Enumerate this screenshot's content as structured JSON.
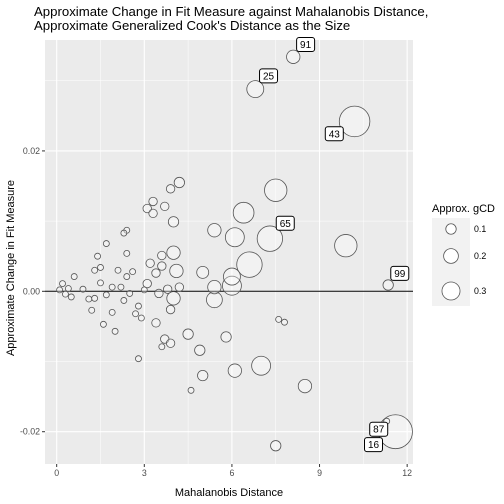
{
  "chart_data": {
    "type": "scatter",
    "title": [
      "Approximate Change in Fit Measure against Mahalanobis Distance,",
      "Approximate Generalized Cook's Distance as the Size"
    ],
    "xlabel": "Mahalanobis Distance",
    "ylabel": "Approximate Change in Fit Measure",
    "xlim": [
      -0.4,
      12.2
    ],
    "ylim": [
      -0.0246,
      0.0358
    ],
    "x_ticks": [
      0,
      3,
      6,
      9,
      12
    ],
    "x_tick_labels": [
      "0",
      "3",
      "6",
      "9",
      "12"
    ],
    "y_ticks": [
      -0.02,
      0.0,
      0.02
    ],
    "y_tick_labels": [
      "-0.02",
      "0.00",
      "0.02"
    ],
    "grid": true,
    "reference_line_y": 0,
    "size_legend": {
      "title": "Approx. gCD",
      "placement": "right",
      "values": [
        0.1,
        0.2,
        0.3
      ],
      "labels": [
        "0.1",
        "0.2",
        "0.3"
      ]
    },
    "colors": {
      "panel": "#ebebeb",
      "grid": "#ffffff",
      "point_stroke": "#555555",
      "point_fill": "#ffffff"
    },
    "points": [
      {
        "x": 8.1,
        "y": 0.0334,
        "gcd": 0.05,
        "label": "91"
      },
      {
        "x": 6.8,
        "y": 0.0288,
        "gcd": 0.08,
        "label": "25"
      },
      {
        "x": 10.2,
        "y": 0.0242,
        "gcd": 0.26,
        "label": "43"
      },
      {
        "x": 11.6,
        "y": -0.02,
        "gcd": 0.32,
        "label": "16"
      },
      {
        "x": 11.3,
        "y": -0.0185,
        "gcd": 0.01,
        "label": "87"
      },
      {
        "x": 11.35,
        "y": 0.0009,
        "gcd": 0.03,
        "label": "99"
      },
      {
        "x": 7.3,
        "y": 0.0075,
        "gcd": 0.18,
        "label": "65"
      },
      {
        "x": 7.5,
        "y": 0.0144,
        "gcd": 0.14,
        "label": ""
      },
      {
        "x": 9.9,
        "y": 0.0065,
        "gcd": 0.14,
        "label": ""
      },
      {
        "x": 6.4,
        "y": 0.0112,
        "gcd": 0.12,
        "label": ""
      },
      {
        "x": 6.6,
        "y": 0.0038,
        "gcd": 0.18,
        "label": ""
      },
      {
        "x": 6.1,
        "y": 0.0077,
        "gcd": 0.1,
        "label": ""
      },
      {
        "x": 5.4,
        "y": 0.0087,
        "gcd": 0.05,
        "label": ""
      },
      {
        "x": 6.0,
        "y": 0.0021,
        "gcd": 0.08,
        "label": ""
      },
      {
        "x": 6.0,
        "y": 0.0008,
        "gcd": 0.1,
        "label": ""
      },
      {
        "x": 5.4,
        "y": -0.0012,
        "gcd": 0.07,
        "label": ""
      },
      {
        "x": 5.4,
        "y": 0.0006,
        "gcd": 0.05,
        "label": ""
      },
      {
        "x": 5.0,
        "y": 0.0027,
        "gcd": 0.04,
        "label": ""
      },
      {
        "x": 5.8,
        "y": -0.0065,
        "gcd": 0.03,
        "label": ""
      },
      {
        "x": 6.1,
        "y": -0.0113,
        "gcd": 0.05,
        "label": ""
      },
      {
        "x": 7.0,
        "y": -0.0106,
        "gcd": 0.1,
        "label": ""
      },
      {
        "x": 7.6,
        "y": -0.004,
        "gcd": 0.01,
        "label": ""
      },
      {
        "x": 7.8,
        "y": -0.0044,
        "gcd": 0.01,
        "label": ""
      },
      {
        "x": 8.5,
        "y": -0.0135,
        "gcd": 0.05,
        "label": ""
      },
      {
        "x": 7.5,
        "y": -0.022,
        "gcd": 0.03,
        "label": ""
      },
      {
        "x": 4.2,
        "y": 0.0155,
        "gcd": 0.03,
        "label": ""
      },
      {
        "x": 3.9,
        "y": 0.0146,
        "gcd": 0.02,
        "label": ""
      },
      {
        "x": 3.7,
        "y": 0.0121,
        "gcd": 0.02,
        "label": ""
      },
      {
        "x": 3.3,
        "y": 0.0128,
        "gcd": 0.02,
        "label": ""
      },
      {
        "x": 3.1,
        "y": 0.0118,
        "gcd": 0.02,
        "label": ""
      },
      {
        "x": 3.3,
        "y": 0.0111,
        "gcd": 0.02,
        "label": ""
      },
      {
        "x": 4.0,
        "y": 0.0099,
        "gcd": 0.03,
        "label": ""
      },
      {
        "x": 4.0,
        "y": 0.0055,
        "gcd": 0.05,
        "label": ""
      },
      {
        "x": 4.1,
        "y": 0.0029,
        "gcd": 0.05,
        "label": ""
      },
      {
        "x": 3.6,
        "y": 0.0036,
        "gcd": 0.02,
        "label": ""
      },
      {
        "x": 3.6,
        "y": 0.0051,
        "gcd": 0.02,
        "label": ""
      },
      {
        "x": 3.2,
        "y": 0.004,
        "gcd": 0.02,
        "label": ""
      },
      {
        "x": 3.4,
        "y": 0.0026,
        "gcd": 0.02,
        "label": ""
      },
      {
        "x": 3.8,
        "y": 0.0003,
        "gcd": 0.02,
        "label": ""
      },
      {
        "x": 4.2,
        "y": 0.0006,
        "gcd": 0.02,
        "label": ""
      },
      {
        "x": 4.0,
        "y": -0.001,
        "gcd": 0.05,
        "label": ""
      },
      {
        "x": 3.1,
        "y": 0.0011,
        "gcd": 0.02,
        "label": ""
      },
      {
        "x": 3.5,
        "y": -0.0003,
        "gcd": 0.02,
        "label": ""
      },
      {
        "x": 3.9,
        "y": -0.0026,
        "gcd": 0.02,
        "label": ""
      },
      {
        "x": 3.7,
        "y": -0.0068,
        "gcd": 0.02,
        "label": ""
      },
      {
        "x": 3.9,
        "y": -0.0074,
        "gcd": 0.02,
        "label": ""
      },
      {
        "x": 3.6,
        "y": -0.0079,
        "gcd": 0.01,
        "label": ""
      },
      {
        "x": 3.4,
        "y": -0.0045,
        "gcd": 0.02,
        "label": ""
      },
      {
        "x": 4.5,
        "y": -0.0061,
        "gcd": 0.03,
        "label": ""
      },
      {
        "x": 4.6,
        "y": -0.0141,
        "gcd": 0.01,
        "label": ""
      },
      {
        "x": 5.0,
        "y": -0.012,
        "gcd": 0.03,
        "label": ""
      },
      {
        "x": 4.9,
        "y": -0.0084,
        "gcd": 0.03,
        "label": ""
      },
      {
        "x": 2.4,
        "y": 0.0087,
        "gcd": 0.01,
        "label": ""
      },
      {
        "x": 2.3,
        "y": 0.0083,
        "gcd": 0.01,
        "label": ""
      },
      {
        "x": 2.4,
        "y": 0.0054,
        "gcd": 0.01,
        "label": ""
      },
      {
        "x": 2.1,
        "y": 0.003,
        "gcd": 0.01,
        "label": ""
      },
      {
        "x": 2.4,
        "y": 0.0021,
        "gcd": 0.01,
        "label": ""
      },
      {
        "x": 2.6,
        "y": 0.0028,
        "gcd": 0.01,
        "label": ""
      },
      {
        "x": 2.2,
        "y": 0.0006,
        "gcd": 0.01,
        "label": ""
      },
      {
        "x": 2.5,
        "y": -0.0003,
        "gcd": 0.01,
        "label": ""
      },
      {
        "x": 2.3,
        "y": -0.0013,
        "gcd": 0.01,
        "label": ""
      },
      {
        "x": 2.7,
        "y": -0.0032,
        "gcd": 0.01,
        "label": ""
      },
      {
        "x": 2.8,
        "y": -0.0021,
        "gcd": 0.01,
        "label": ""
      },
      {
        "x": 2.8,
        "y": -0.0096,
        "gcd": 0.01,
        "label": ""
      },
      {
        "x": 2.9,
        "y": -0.0038,
        "gcd": 0.01,
        "label": ""
      },
      {
        "x": 3.0,
        "y": 0.0002,
        "gcd": 0.01,
        "label": ""
      },
      {
        "x": 1.7,
        "y": 0.0068,
        "gcd": 0.01,
        "label": ""
      },
      {
        "x": 1.4,
        "y": 0.005,
        "gcd": 0.01,
        "label": ""
      },
      {
        "x": 1.5,
        "y": 0.0034,
        "gcd": 0.01,
        "label": ""
      },
      {
        "x": 1.3,
        "y": 0.003,
        "gcd": 0.01,
        "label": ""
      },
      {
        "x": 1.5,
        "y": 0.0012,
        "gcd": 0.01,
        "label": ""
      },
      {
        "x": 1.9,
        "y": 0.0006,
        "gcd": 0.01,
        "label": ""
      },
      {
        "x": 1.7,
        "y": -0.0005,
        "gcd": 0.01,
        "label": ""
      },
      {
        "x": 1.3,
        "y": -0.001,
        "gcd": 0.01,
        "label": ""
      },
      {
        "x": 1.2,
        "y": -0.0027,
        "gcd": 0.01,
        "label": ""
      },
      {
        "x": 1.6,
        "y": -0.0047,
        "gcd": 0.01,
        "label": ""
      },
      {
        "x": 1.9,
        "y": -0.003,
        "gcd": 0.01,
        "label": ""
      },
      {
        "x": 2.0,
        "y": -0.0057,
        "gcd": 0.01,
        "label": ""
      },
      {
        "x": 0.9,
        "y": 0.0003,
        "gcd": 0.01,
        "label": ""
      },
      {
        "x": 0.6,
        "y": 0.0021,
        "gcd": 0.01,
        "label": ""
      },
      {
        "x": 0.2,
        "y": 0.0011,
        "gcd": 0.01,
        "label": ""
      },
      {
        "x": 0.4,
        "y": 0.0004,
        "gcd": 0.01,
        "label": ""
      },
      {
        "x": 0.3,
        "y": -0.0004,
        "gcd": 0.01,
        "label": ""
      },
      {
        "x": 0.5,
        "y": -0.0008,
        "gcd": 0.01,
        "label": ""
      },
      {
        "x": 0.1,
        "y": 0.0002,
        "gcd": 0.01,
        "label": ""
      },
      {
        "x": 1.1,
        "y": -0.0011,
        "gcd": 0.01,
        "label": ""
      }
    ]
  }
}
